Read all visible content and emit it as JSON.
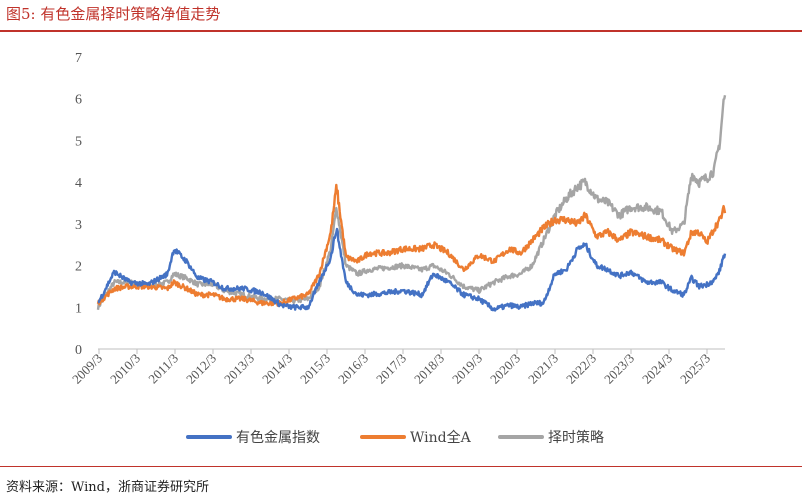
{
  "title": "图5:   有色金属择时策略净值走势",
  "source": "资料来源：Wind，浙商证券研究所",
  "chart_data": {
    "type": "line",
    "title": "",
    "xlabel": "",
    "ylabel": "",
    "ylim": [
      0,
      7
    ],
    "yticks": [
      "0",
      "1",
      "2",
      "3",
      "4",
      "5",
      "6",
      "7"
    ],
    "xticks": [
      "2009/3",
      "2010/3",
      "2011/3",
      "2012/3",
      "2013/3",
      "2014/3",
      "2015/3",
      "2016/3",
      "2017/3",
      "2018/3",
      "2019/3",
      "2020/3",
      "2021/3",
      "2022/3",
      "2023/3",
      "2024/3",
      "2025/3"
    ],
    "grid": false,
    "legend_position": "bottom",
    "x": [
      2009.17,
      2009.6,
      2010.0,
      2010.5,
      2011.0,
      2011.17,
      2011.5,
      2011.8,
      2012.2,
      2012.5,
      2013.0,
      2013.5,
      2014.0,
      2014.3,
      2014.7,
      2015.0,
      2015.3,
      2015.45,
      2015.7,
      2016.0,
      2016.3,
      2016.8,
      2017.2,
      2017.7,
      2018.0,
      2018.4,
      2018.8,
      2019.2,
      2019.6,
      2020.0,
      2020.3,
      2020.6,
      2020.9,
      2021.2,
      2021.5,
      2021.8,
      2022.0,
      2022.3,
      2022.6,
      2022.9,
      2023.2,
      2023.6,
      2024.0,
      2024.3,
      2024.6,
      2024.8,
      2025.0,
      2025.2,
      2025.4,
      2025.55,
      2025.65
    ],
    "series": [
      {
        "name": "有色金属指数",
        "color": "#4472c4",
        "values": [
          1.1,
          1.85,
          1.6,
          1.55,
          1.8,
          2.4,
          2.1,
          1.7,
          1.6,
          1.45,
          1.45,
          1.35,
          1.05,
          1.0,
          1.0,
          1.6,
          2.2,
          2.9,
          1.6,
          1.3,
          1.3,
          1.35,
          1.4,
          1.3,
          1.8,
          1.6,
          1.3,
          1.2,
          0.95,
          1.05,
          1.0,
          1.1,
          1.1,
          1.8,
          1.9,
          2.4,
          2.5,
          2.0,
          1.9,
          1.75,
          1.85,
          1.6,
          1.6,
          1.4,
          1.3,
          1.7,
          1.5,
          1.55,
          1.65,
          1.9,
          2.25
        ]
      },
      {
        "name": "Wind全A",
        "color": "#ed7d31",
        "values": [
          1.1,
          1.45,
          1.5,
          1.5,
          1.45,
          1.6,
          1.45,
          1.3,
          1.3,
          1.2,
          1.2,
          1.1,
          1.1,
          1.2,
          1.3,
          1.8,
          2.8,
          3.9,
          2.2,
          2.1,
          2.3,
          2.3,
          2.4,
          2.4,
          2.5,
          2.3,
          1.9,
          2.25,
          2.1,
          2.4,
          2.3,
          2.6,
          2.9,
          3.1,
          3.1,
          3.0,
          3.2,
          2.7,
          2.8,
          2.6,
          2.8,
          2.7,
          2.6,
          2.4,
          2.3,
          2.8,
          2.8,
          2.55,
          2.9,
          3.1,
          3.35
        ]
      },
      {
        "name": "择时策略",
        "color": "#a5a5a5",
        "values": [
          1.0,
          1.6,
          1.6,
          1.5,
          1.6,
          1.8,
          1.7,
          1.55,
          1.55,
          1.4,
          1.3,
          1.2,
          1.2,
          1.15,
          1.2,
          1.5,
          2.4,
          3.4,
          2.0,
          1.8,
          1.9,
          1.95,
          2.0,
          1.9,
          2.0,
          1.8,
          1.5,
          1.4,
          1.6,
          1.75,
          1.8,
          2.0,
          2.6,
          3.2,
          3.6,
          3.9,
          4.0,
          3.6,
          3.5,
          3.2,
          3.4,
          3.4,
          3.3,
          2.8,
          3.0,
          4.2,
          4.0,
          4.1,
          4.3,
          5.0,
          6.0
        ]
      }
    ]
  }
}
